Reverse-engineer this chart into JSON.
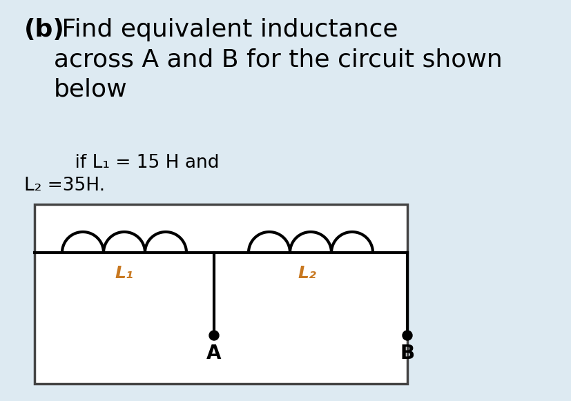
{
  "bg_color": "#ddeaf2",
  "title_bold": "(b)",
  "title_rest": " Find equivalent inductance\nacross A and B for the circuit shown\nbelow",
  "sub_text_indent": "    if L₁ = 15 H and",
  "sub_text2": "L₂ =35H.",
  "L1_label": "L₁",
  "L2_label": "L₂",
  "A_label": "A",
  "B_label": "B",
  "circuit_bg": "#ffffff",
  "line_color": "#000000",
  "label_color": "#c87820",
  "text_color": "#000000",
  "title_fontsize": 26,
  "sub_fontsize": 19,
  "circuit_label_fontsize": 18,
  "terminal_label_fontsize": 20
}
